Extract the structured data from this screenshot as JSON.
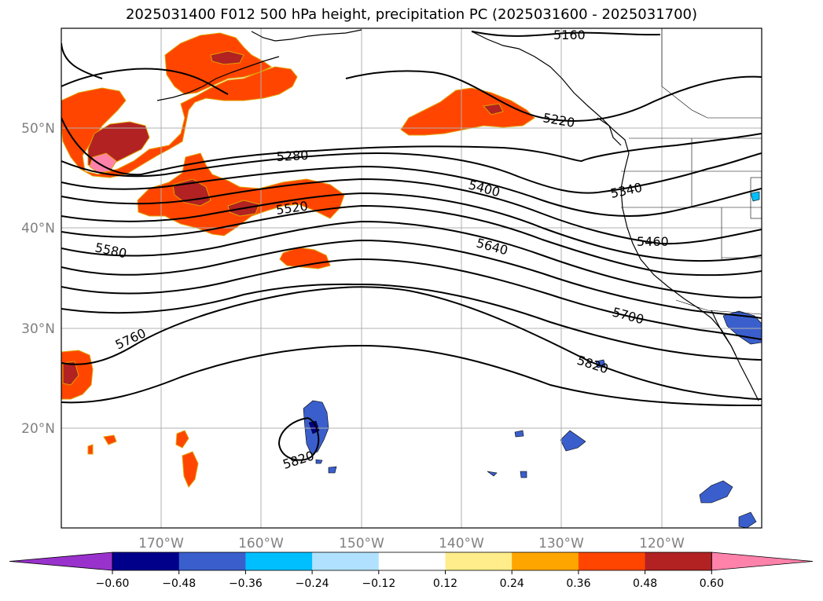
{
  "title": "2025031400 F012 500 hPa height, precipitation PC (2025031600 - 2025031700)",
  "map": {
    "lat_labels": [
      "50°N",
      "40°N",
      "30°N",
      "20°N"
    ],
    "lon_labels": [
      "170°W",
      "160°W",
      "150°W",
      "140°W",
      "130°W",
      "120°W"
    ],
    "contour_labels": [
      "5160",
      "5220",
      "5280",
      "5340",
      "5400",
      "5460",
      "5520",
      "5580",
      "5640",
      "5700",
      "5760",
      "5820",
      "5820"
    ]
  },
  "colorbar": {
    "ticks": [
      "−0.60",
      "−0.48",
      "−0.36",
      "−0.24",
      "−0.12",
      "0.12",
      "0.24",
      "0.36",
      "0.48",
      "0.60"
    ],
    "colors": [
      "#9932cc",
      "#00008b",
      "#3a5fcd",
      "#00bfff",
      "#b0e2ff",
      "#ffffff",
      "#ffec8b",
      "#ffa500",
      "#ff4500",
      "#b22222",
      "#ff82ab"
    ]
  }
}
